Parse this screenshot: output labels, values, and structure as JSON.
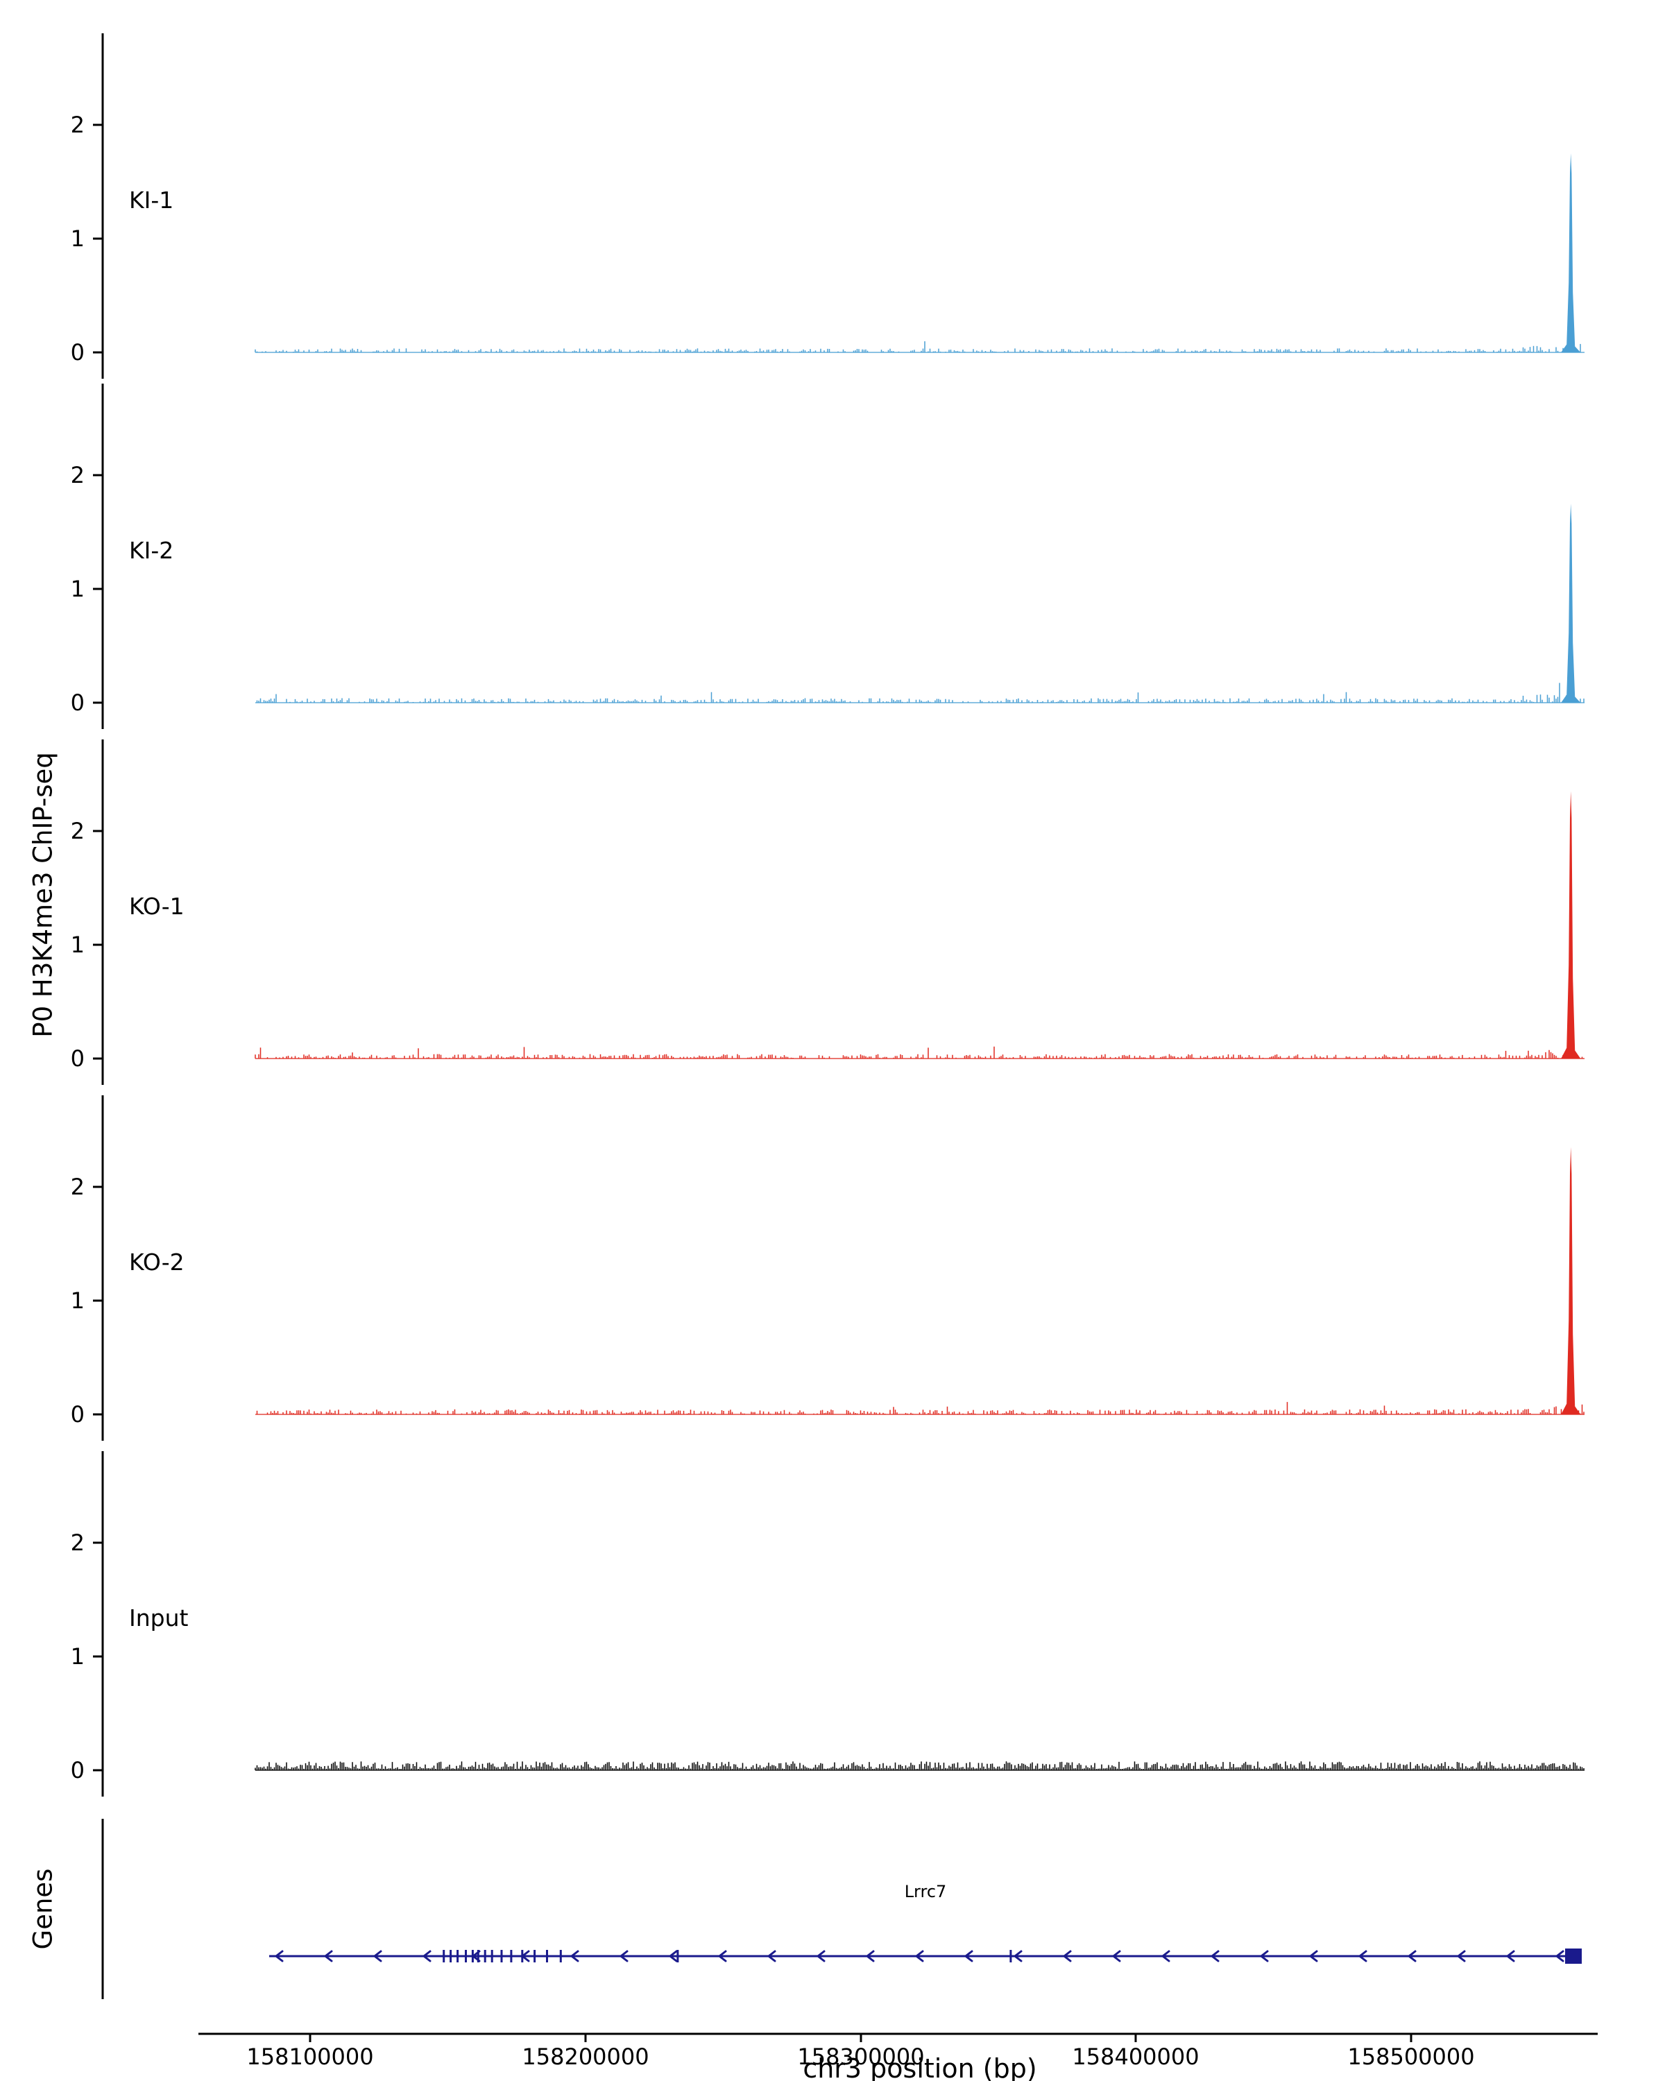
{
  "figure": {
    "y_axis_title": "P0 H3K4me3 ChIP-seq",
    "genes_panel_title": "Genes",
    "x_axis_title": "chr3 position (bp)"
  },
  "chart_data": {
    "type": "area",
    "title": "",
    "xlabel": "chr3 position (bp)",
    "ylabel": "P0 H3K4me3 ChIP-seq",
    "legend_position": "none",
    "grid": false,
    "x_range": [
      158080000,
      158563000
    ],
    "x_ticks": [
      158100000,
      158200000,
      158300000,
      158400000,
      158500000
    ],
    "x_tick_labels": [
      "158100000",
      "158200000",
      "158300000",
      "158400000",
      "158500000"
    ],
    "y_ticks": [
      0,
      1,
      2
    ],
    "y_tick_labels": [
      "0",
      "1",
      "2"
    ],
    "y_max": 2.8,
    "tracks": [
      {
        "name": "KI-1",
        "color": "#4a9fd4",
        "noise_amplitude": 0.035,
        "peak": {
          "x": 158558000,
          "height": 1.75
        }
      },
      {
        "name": "KI-2",
        "color": "#4a9fd4",
        "noise_amplitude": 0.04,
        "peak": {
          "x": 158558000,
          "height": 1.75
        }
      },
      {
        "name": "KO-1",
        "color": "#e02a21",
        "noise_amplitude": 0.04,
        "peak": {
          "x": 158558000,
          "height": 2.35
        }
      },
      {
        "name": "KO-2",
        "color": "#e02a21",
        "noise_amplitude": 0.045,
        "peak": {
          "x": 158558000,
          "height": 2.35
        }
      },
      {
        "name": "Input",
        "color": "#000000",
        "noise_amplitude": 0.12,
        "peak": null
      }
    ],
    "genes_panel": {
      "label": "Genes",
      "gene": {
        "name": "Lrrc7",
        "start": 158085000,
        "end": 158562000,
        "strand": "-",
        "color": "#1a1a8c",
        "exons": [
          158148500,
          158151000,
          158153500,
          158156500,
          158159000,
          158161000,
          158163500,
          158166000,
          158169500,
          158173000,
          158177000,
          158181500,
          158186000,
          158191000,
          158233500,
          158354500
        ],
        "tss_exon": {
          "start": 158556000,
          "end": 158562000
        }
      }
    }
  }
}
